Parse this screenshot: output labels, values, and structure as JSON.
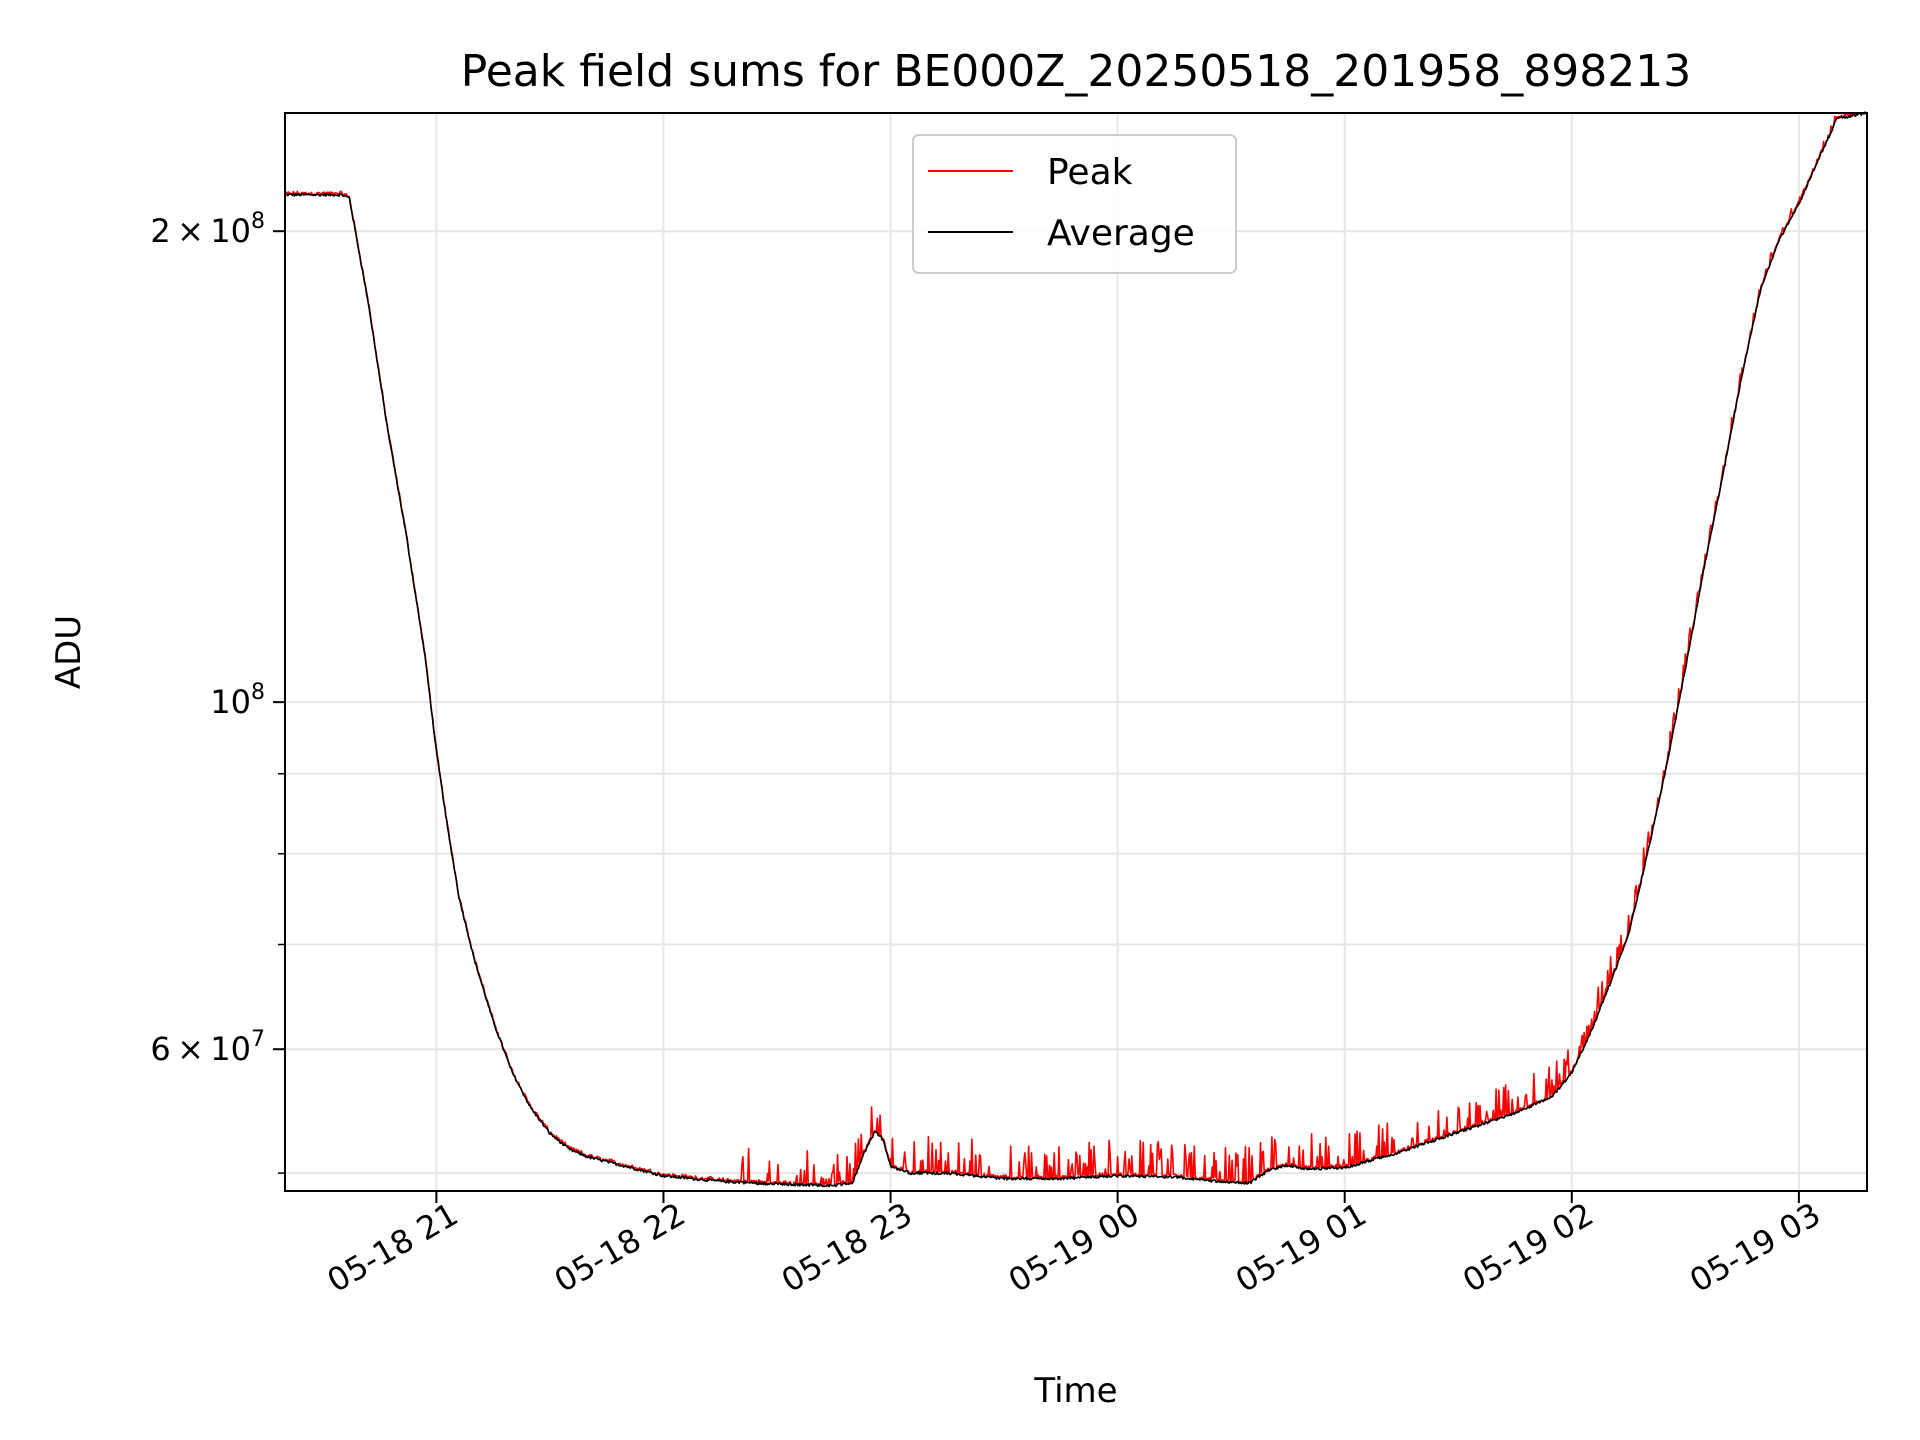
{
  "chart_data": {
    "type": "line",
    "title": "Peak field sums for BE000Z_20250518_201958_898213",
    "xlabel": "Time",
    "ylabel": "ADU",
    "y_scale": "log",
    "grid": true,
    "legend_position": "top-center",
    "x_range": [
      "05-18 20:20",
      "05-19 03:18"
    ],
    "ylim": [
      48700000,
      238000000
    ],
    "x_ticks": [
      {
        "value": "05-18 21:00",
        "label": "05-18 21"
      },
      {
        "value": "05-18 22:00",
        "label": "05-18 22"
      },
      {
        "value": "05-18 23:00",
        "label": "05-18 23"
      },
      {
        "value": "05-19 00:00",
        "label": "05-19 00"
      },
      {
        "value": "05-19 01:00",
        "label": "05-19 01"
      },
      {
        "value": "05-19 02:00",
        "label": "05-19 02"
      },
      {
        "value": "05-19 03:00",
        "label": "05-19 03"
      }
    ],
    "y_major_ticks": [
      {
        "value": 60000000,
        "mantissa": "6",
        "exponent": "7"
      },
      {
        "value": 100000000,
        "mantissa": "",
        "exponent": "8"
      },
      {
        "value": 200000000,
        "mantissa": "2",
        "exponent": "8"
      }
    ],
    "y_minor_ticks": [
      50000000,
      70000000,
      80000000,
      90000000
    ],
    "series": [
      {
        "name": "Peak",
        "color": "#ff0000",
        "noise": "positive spikes up to ~2.5e6 above the average throughout the low plateau"
      },
      {
        "name": "Average",
        "color": "#000000",
        "x": [
          "05-18 20:20",
          "05-18 20:35",
          "05-18 20:37",
          "05-18 20:42",
          "05-18 20:47",
          "05-18 20:52",
          "05-18 20:57",
          "05-18 21:00",
          "05-18 21:03",
          "05-18 21:06",
          "05-18 21:10",
          "05-18 21:15",
          "05-18 21:20",
          "05-18 21:25",
          "05-18 21:30",
          "05-18 21:35",
          "05-18 21:40",
          "05-18 21:50",
          "05-18 22:00",
          "05-18 22:15",
          "05-18 22:30",
          "05-18 22:45",
          "05-18 22:50",
          "05-18 22:53",
          "05-18 22:56",
          "05-18 22:58",
          "05-18 23:00",
          "05-18 23:05",
          "05-18 23:15",
          "05-18 23:30",
          "05-18 23:45",
          "05-19 00:00",
          "05-19 00:15",
          "05-19 00:30",
          "05-19 00:35",
          "05-19 00:40",
          "05-19 00:45",
          "05-19 00:50",
          "05-19 01:00",
          "05-19 01:15",
          "05-19 01:30",
          "05-19 01:45",
          "05-19 01:55",
          "05-19 02:00",
          "05-19 02:05",
          "05-19 02:10",
          "05-19 02:15",
          "05-19 02:20",
          "05-19 02:25",
          "05-19 02:30",
          "05-19 02:35",
          "05-19 02:40",
          "05-19 02:45",
          "05-19 02:50",
          "05-19 02:55",
          "05-19 03:00",
          "05-19 03:05",
          "05-19 03:08",
          "05-19 03:10",
          "05-19 03:18"
        ],
        "y": [
          211000000,
          211000000,
          210000000,
          180000000,
          150000000,
          128000000,
          107000000,
          93000000,
          83000000,
          75000000,
          68500000,
          62500000,
          58000000,
          55000000,
          53000000,
          51800000,
          51200000,
          50500000,
          49800000,
          49400000,
          49200000,
          49100000,
          49300000,
          51500000,
          53200000,
          52500000,
          50500000,
          50000000,
          50000000,
          49600000,
          49600000,
          49800000,
          49700000,
          49300000,
          49300000,
          50200000,
          50600000,
          50300000,
          50400000,
          51600000,
          53100000,
          54600000,
          56000000,
          58000000,
          61500000,
          66000000,
          71000000,
          80000000,
          91000000,
          105000000,
          122000000,
          140000000,
          162000000,
          184000000,
          198000000,
          208000000,
          222000000,
          230000000,
          236000000,
          238000000
        ]
      }
    ]
  }
}
